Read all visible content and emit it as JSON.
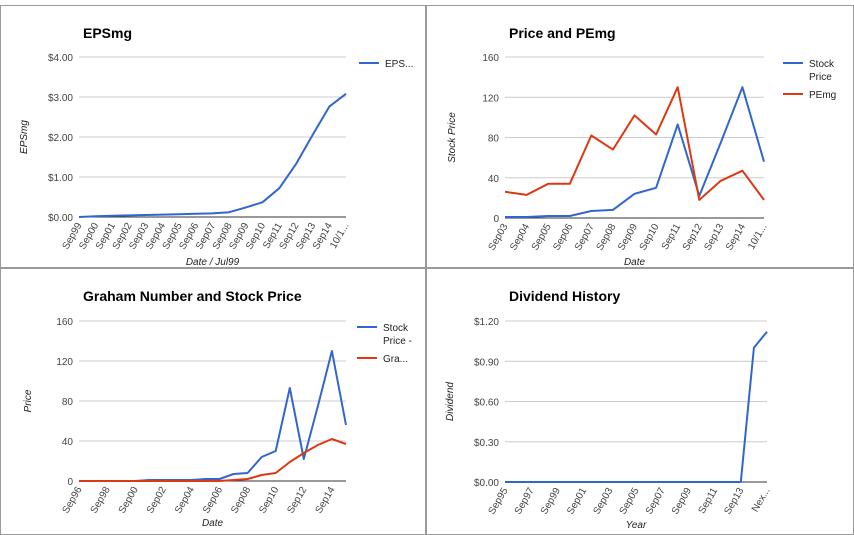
{
  "chart_data": [
    {
      "type": "line",
      "title": "EPSmg",
      "xlabel": "Date / Jul99",
      "ylabel": "EPSmg",
      "categories": [
        "Sep99",
        "Sep00",
        "Sep01",
        "Sep02",
        "Sep03",
        "Sep04",
        "Sep05",
        "Sep06",
        "Sep07",
        "Sep08",
        "Sep09",
        "Sep10",
        "Sep11",
        "Sep12",
        "Sep13",
        "Sep14",
        "10/1..."
      ],
      "series": [
        {
          "name": "EPS...",
          "color": "#3366cc",
          "values": [
            0.0,
            0.02,
            0.03,
            0.04,
            0.05,
            0.06,
            0.07,
            0.08,
            0.09,
            0.12,
            0.24,
            0.37,
            0.72,
            1.32,
            2.05,
            2.76,
            3.08
          ]
        }
      ],
      "ylim": [
        0,
        4
      ],
      "yticks": [
        0,
        1,
        2,
        3,
        4
      ],
      "yticklabels": [
        "$0.00",
        "$1.00",
        "$2.00",
        "$3.00",
        "$4.00"
      ],
      "grid": true,
      "legend_position": "right"
    },
    {
      "type": "line",
      "title": "Price and PEmg",
      "xlabel": "Date",
      "ylabel": "Stock Price",
      "categories": [
        "Sep03",
        "Sep04",
        "Sep05",
        "Sep06",
        "Sep07",
        "Sep08",
        "Sep09",
        "Sep10",
        "Sep11",
        "Sep12",
        "Sep13",
        "Sep14",
        "10/1..."
      ],
      "series": [
        {
          "name": "Stock Price",
          "color": "#3366cc",
          "values": [
            1,
            1,
            2,
            2,
            7,
            8,
            24,
            30,
            93,
            22,
            75,
            130,
            56
          ]
        },
        {
          "name": "PEmg",
          "color": "#dc3912",
          "values": [
            26,
            23,
            34,
            34,
            82,
            68,
            102,
            83,
            130,
            18,
            37,
            47,
            18
          ]
        }
      ],
      "ylim": [
        0,
        160
      ],
      "yticks": [
        0,
        40,
        80,
        120,
        160
      ],
      "yticklabels": [
        "0",
        "40",
        "80",
        "120",
        "160"
      ],
      "grid": true,
      "legend_position": "right"
    },
    {
      "type": "line",
      "title": "Graham Number and Stock Price",
      "xlabel": "Date",
      "ylabel": "Price",
      "categories": [
        "Sep96",
        "Sep97",
        "Sep98",
        "Sep99",
        "Sep00",
        "Sep01",
        "Sep02",
        "Sep03",
        "Sep04",
        "Sep05",
        "Sep06",
        "Sep07",
        "Sep08",
        "Sep09",
        "Sep10",
        "Sep11",
        "Sep12",
        "Sep13",
        "Sep14",
        "10/1"
      ],
      "xticklabels": [
        "Sep96",
        "",
        "Sep98",
        "",
        "Sep00",
        "",
        "Sep02",
        "",
        "Sep04",
        "",
        "Sep06",
        "",
        "Sep08",
        "",
        "Sep10",
        "",
        "Sep12",
        "",
        "Sep14",
        ""
      ],
      "series": [
        {
          "name": "Stock Price -",
          "color": "#3366cc",
          "values": [
            0,
            0,
            0,
            0,
            0,
            1,
            1,
            1,
            1,
            2,
            2,
            7,
            8,
            24,
            30,
            93,
            22,
            75,
            130,
            56
          ]
        },
        {
          "name": "Gra...",
          "color": "#dc3912",
          "values": [
            0,
            0,
            0,
            0,
            0,
            0,
            0,
            0,
            0,
            0,
            0,
            1,
            2,
            6,
            8,
            19,
            28,
            36,
            42,
            37
          ]
        }
      ],
      "ylim": [
        0,
        160
      ],
      "yticks": [
        0,
        40,
        80,
        120,
        160
      ],
      "yticklabels": [
        "0",
        "40",
        "80",
        "120",
        "160"
      ],
      "grid": true,
      "legend_position": "right"
    },
    {
      "type": "line",
      "title": "Dividend History",
      "xlabel": "Year",
      "ylabel": "Dividend",
      "categories": [
        "Sep95",
        "Sep96",
        "Sep97",
        "Sep98",
        "Sep99",
        "Sep00",
        "Sep01",
        "Sep02",
        "Sep03",
        "Sep04",
        "Sep05",
        "Sep06",
        "Sep07",
        "Sep08",
        "Sep09",
        "Sep10",
        "Sep11",
        "Sep12",
        "Sep13",
        "Sep14",
        "Nex..."
      ],
      "xticklabels": [
        "Sep95",
        "",
        "Sep97",
        "",
        "Sep99",
        "",
        "Sep01",
        "",
        "Sep03",
        "",
        "Sep05",
        "",
        "Sep07",
        "",
        "Sep09",
        "",
        "Sep11",
        "",
        "Sep13",
        "",
        "Nex..."
      ],
      "series": [
        {
          "name": "Dividend",
          "color": "#3366cc",
          "values": [
            0,
            0,
            0,
            0,
            0,
            0,
            0,
            0,
            0,
            0,
            0,
            0,
            0,
            0,
            0,
            0,
            0,
            0,
            0,
            1.0,
            1.12
          ]
        }
      ],
      "ylim": [
        0,
        1.2
      ],
      "yticks": [
        0,
        0.3,
        0.6,
        0.9,
        1.2
      ],
      "yticklabels": [
        "$0.00",
        "$0.30",
        "$0.60",
        "$0.90",
        "$1.20"
      ],
      "grid": true,
      "legend_position": "none"
    }
  ]
}
